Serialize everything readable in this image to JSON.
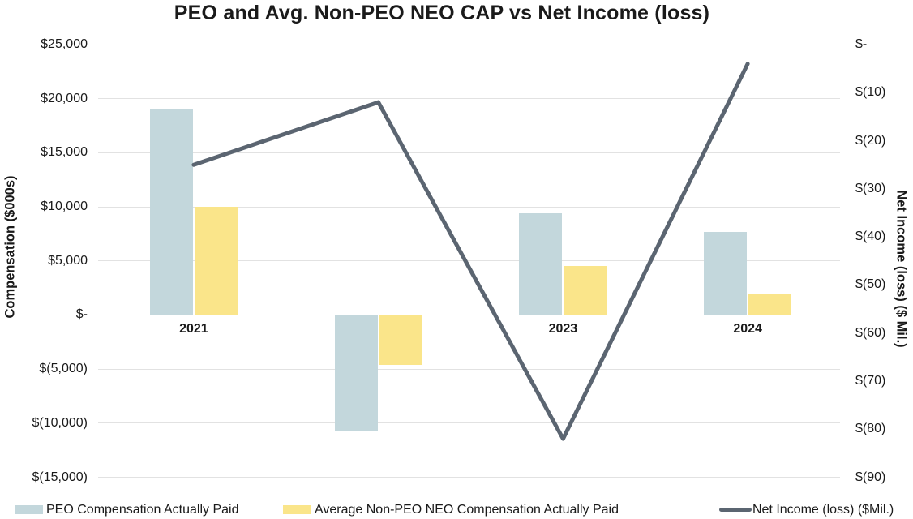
{
  "title": "PEO and Avg. Non-PEO NEO CAP vs Net Income (loss)",
  "left_axis": {
    "title": "Compensation ($000s)",
    "tick_labels": [
      "$25,000",
      "$20,000",
      "$15,000",
      "$10,000",
      "$5,000",
      "$-",
      "$(5,000)",
      "$(10,000)",
      "$(15,000)"
    ]
  },
  "right_axis": {
    "title": "Net Income (loss) ($ Mil.)",
    "tick_labels": [
      "$-",
      "$(10)",
      "$(20)",
      "$(30)",
      "$(40)",
      "$(50)",
      "$(60)",
      "$(70)",
      "$(80)",
      "$(90)"
    ]
  },
  "chart_data": {
    "type": "combo-bar-line",
    "categories": [
      "2021",
      "2022",
      "2023",
      "2024"
    ],
    "series": [
      {
        "name": "PEO Compensation Actually Paid",
        "type": "bar",
        "axis": "left",
        "color": "#C3D7DC",
        "values": [
          19000,
          -10700,
          9400,
          7650
        ]
      },
      {
        "name": "Average Non-PEO NEO Compensation Actually Paid",
        "type": "bar",
        "axis": "left",
        "color": "#FAE58A",
        "values": [
          10000,
          -4650,
          4500,
          1950
        ]
      },
      {
        "name": "Net Income (loss) ($Mil.)",
        "type": "line",
        "axis": "right",
        "color": "#5B6571",
        "values": [
          -25,
          -12,
          -82,
          -4
        ]
      }
    ],
    "left_ylim": [
      -15000,
      25000
    ],
    "left_step": 5000,
    "right_ylim": [
      -90,
      0
    ],
    "right_step": 10,
    "grid": true,
    "legend_position": "bottom"
  },
  "colors": {
    "gridline": "#E2E2E2",
    "zero_axis": "#D4D4D4",
    "text": "#1A1A1A"
  }
}
